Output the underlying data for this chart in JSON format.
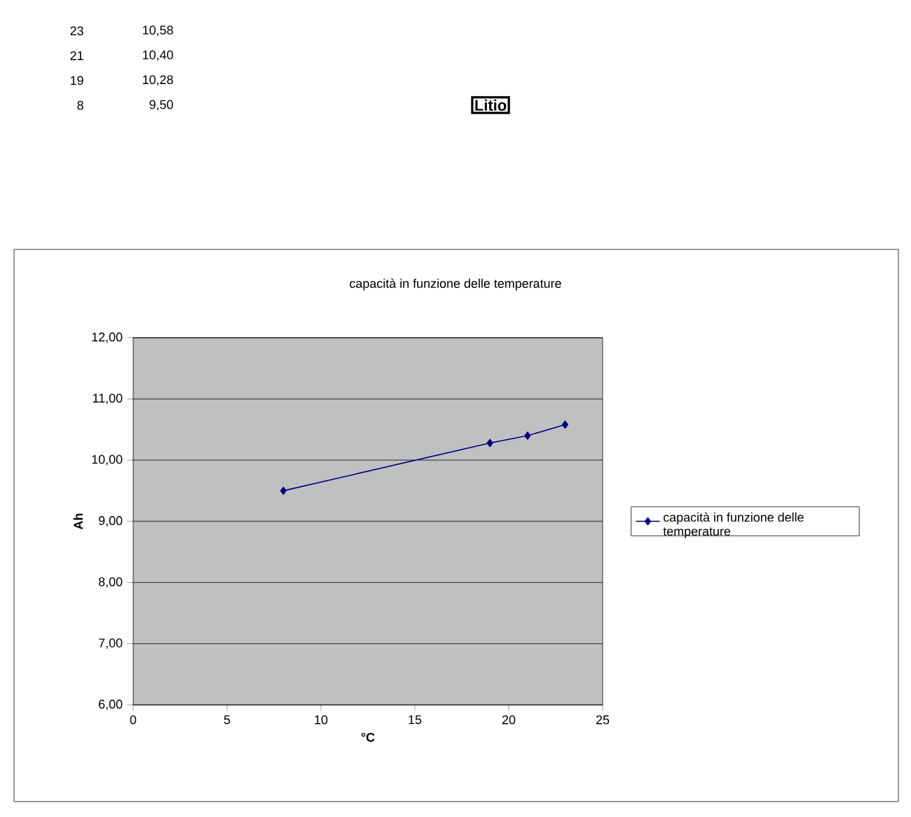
{
  "chart_data": {
    "type": "line",
    "title": "capacità in funzione delle temperature",
    "xlabel": "°C",
    "ylabel": "Ah",
    "x": [
      23,
      21,
      19,
      8
    ],
    "series": [
      {
        "name": "capacità in funzione delle temperature",
        "color": "#000080",
        "values": [
          10.58,
          10.4,
          10.28,
          9.5
        ]
      }
    ],
    "xlim": [
      0,
      25
    ],
    "xticks": [
      0,
      5,
      10,
      15,
      20,
      25
    ],
    "ylim": [
      6,
      12
    ],
    "yticks": [
      {
        "value": 6,
        "label": "6,00"
      },
      {
        "value": 7,
        "label": "7,00"
      },
      {
        "value": 8,
        "label": "8,00"
      },
      {
        "value": 9,
        "label": "9,00"
      },
      {
        "value": 10,
        "label": "10,00"
      },
      {
        "value": 11,
        "label": "11,00"
      },
      {
        "value": 12,
        "label": "12,00"
      }
    ],
    "grid": "y",
    "legend": "right",
    "marker": "diamond",
    "line_style": "solid",
    "annotations": [
      "23",
      "10,58",
      "21",
      "10,40",
      "19",
      "10,28",
      "8",
      "9,50",
      "Litio"
    ]
  }
}
